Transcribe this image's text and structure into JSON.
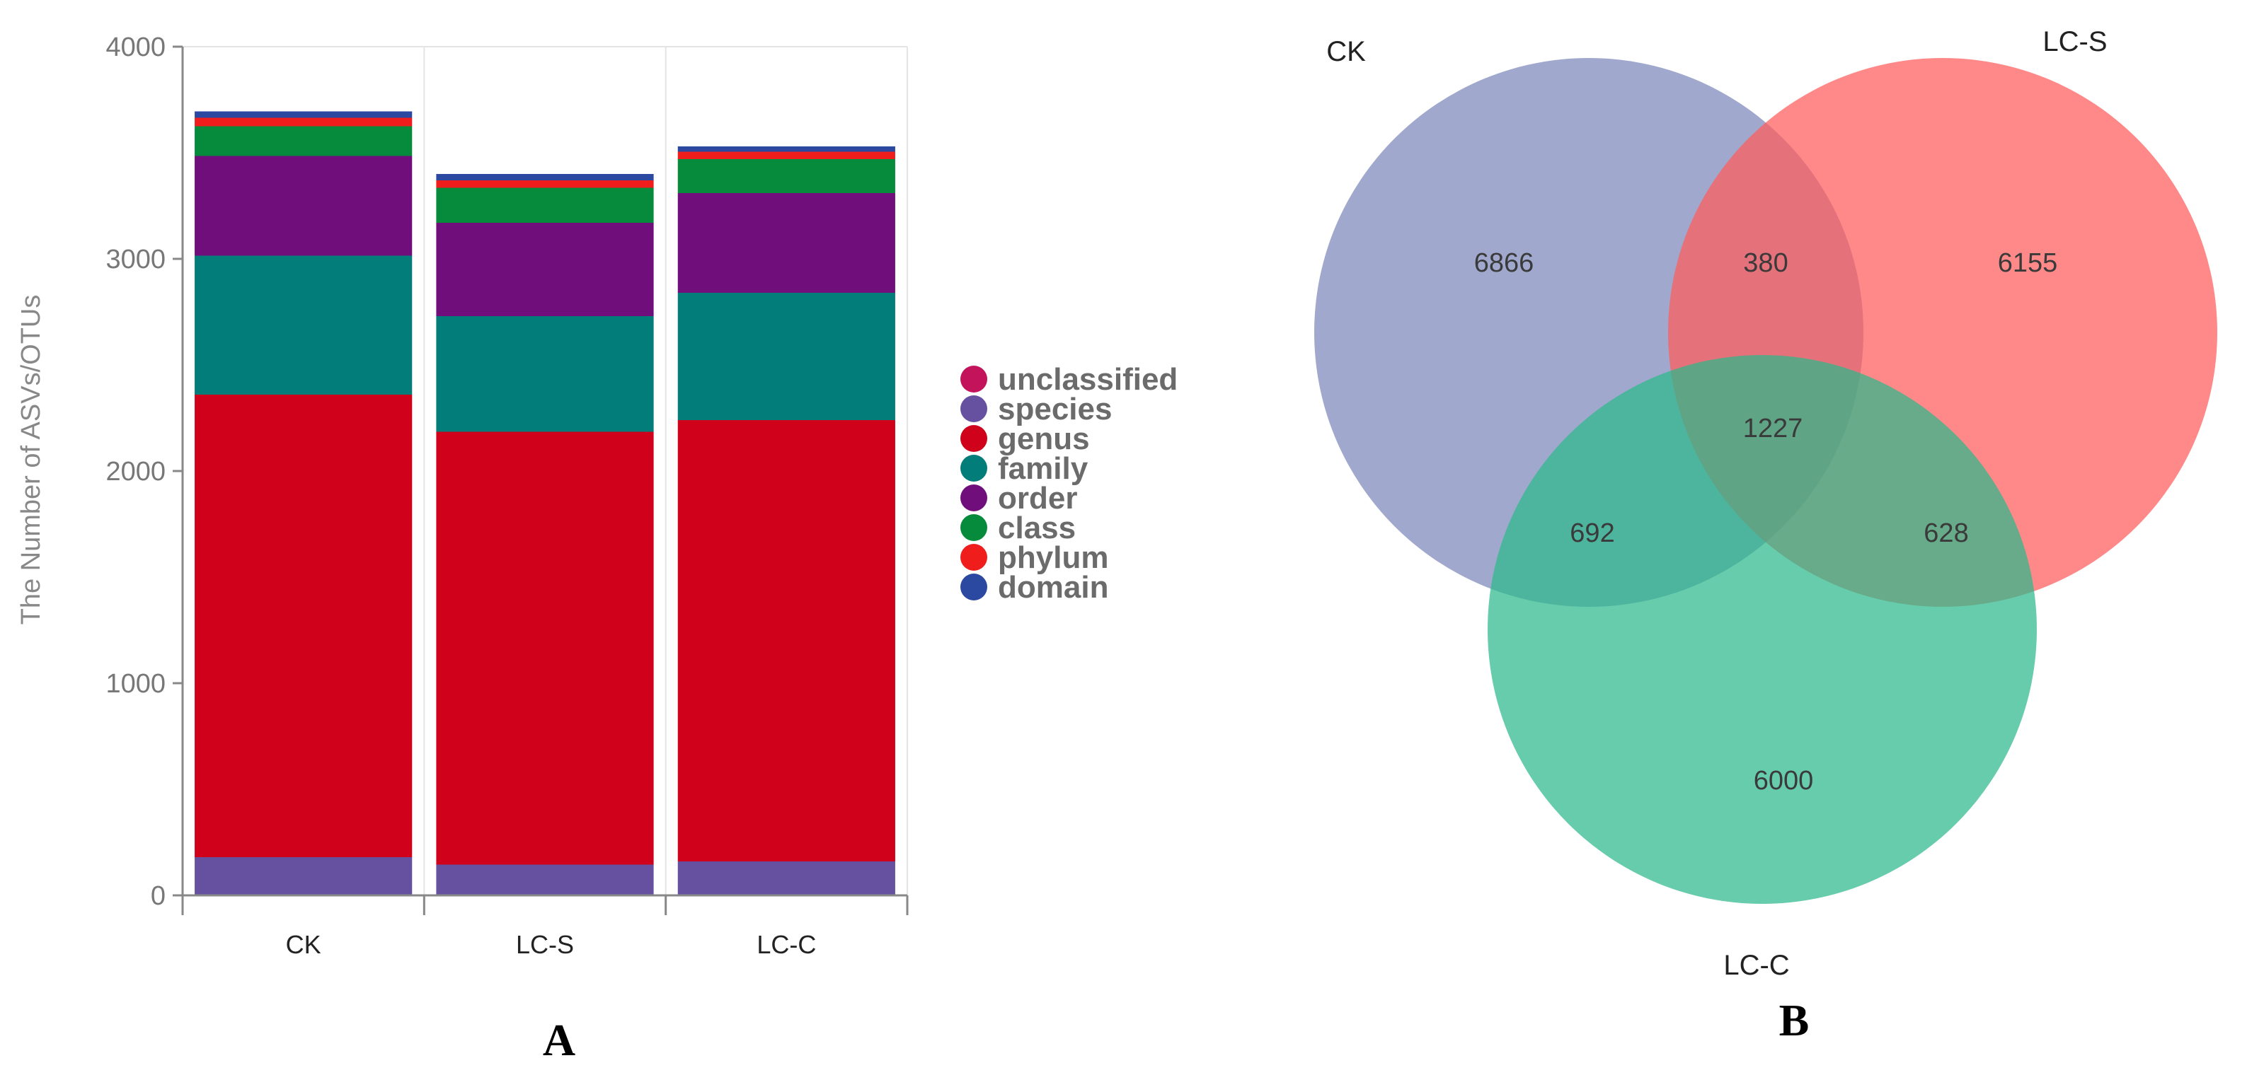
{
  "chart_data": [
    {
      "type": "bar",
      "stacked": true,
      "panel_label": "A",
      "ylabel": "The Number of ASVs/OTUs",
      "ylim": [
        0,
        4000
      ],
      "yticks": [
        "0",
        "1000",
        "2000",
        "3000",
        "4000"
      ],
      "categories": [
        "CK",
        "LC-S",
        "LC-C"
      ],
      "series": [
        {
          "name": "species",
          "color": "#6650a0",
          "values": [
            180,
            145,
            160
          ]
        },
        {
          "name": "genus",
          "color": "#d0021b",
          "values": [
            2180,
            2040,
            2080
          ]
        },
        {
          "name": "family",
          "color": "#027d7a",
          "values": [
            655,
            545,
            600
          ]
        },
        {
          "name": "order",
          "color": "#700f7c",
          "values": [
            470,
            440,
            470
          ]
        },
        {
          "name": "class",
          "color": "#068b3c",
          "values": [
            140,
            165,
            160
          ]
        },
        {
          "name": "phylum",
          "color": "#f01d1d",
          "values": [
            40,
            35,
            35
          ]
        },
        {
          "name": "domain",
          "color": "#2b49a0",
          "values": [
            30,
            30,
            25
          ]
        },
        {
          "name": "unclassified",
          "color": "#c2135b",
          "values": [
            0,
            0,
            0
          ]
        }
      ],
      "legend": [
        {
          "label": "unclassified",
          "color": "#c2135b"
        },
        {
          "label": "species",
          "color": "#6650a0"
        },
        {
          "label": "genus",
          "color": "#d0021b"
        },
        {
          "label": "family",
          "color": "#027d7a"
        },
        {
          "label": "order",
          "color": "#700f7c"
        },
        {
          "label": "class",
          "color": "#068b3c"
        },
        {
          "label": "phylum",
          "color": "#f01d1d"
        },
        {
          "label": "domain",
          "color": "#2b49a0"
        }
      ],
      "legend_position": "right"
    },
    {
      "type": "venn",
      "panel_label": "B",
      "sets": [
        {
          "name": "CK",
          "color": "#7b86ba"
        },
        {
          "name": "LC-S",
          "color": "#ff5c5c"
        },
        {
          "name": "LC-C",
          "color": "#2cb98a"
        }
      ],
      "regions": {
        "CK_only": "6866",
        "LC-S_only": "6155",
        "LC-C_only": "6000",
        "CK_LC-S": "380",
        "CK_LC-C": "692",
        "LC-S_LC-C": "628",
        "all": "1227"
      }
    }
  ]
}
